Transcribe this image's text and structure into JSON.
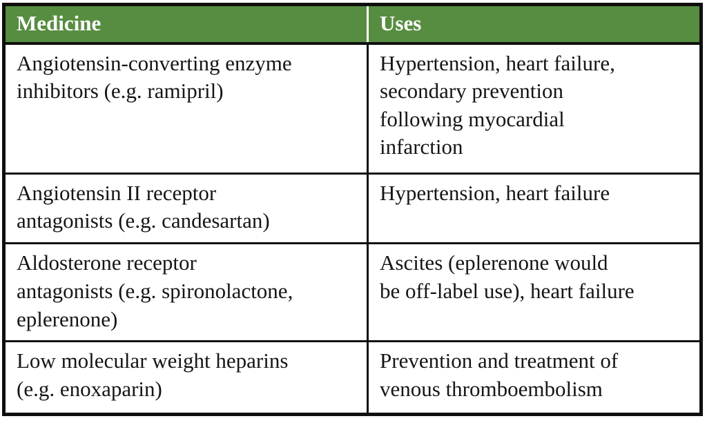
{
  "colors": {
    "header_bg": "#578d41",
    "header_text": "#ffffff",
    "border": "#0f0f0f",
    "body_text": "#151515",
    "body_bg": "#ffffff"
  },
  "table": {
    "columns": {
      "medicine": "Medicine",
      "uses": "Uses"
    },
    "rows": [
      {
        "medicine": "Angiotensin-converting enzyme\ninhibitors (e.g. ramipril)",
        "uses": "Hypertension, heart failure,\nsecondary prevention\nfollowing myocardial\ninfarction"
      },
      {
        "medicine": "Angiotensin II receptor\nantagonists (e.g. candesartan)",
        "uses": "Hypertension, heart failure"
      },
      {
        "medicine": "Aldosterone receptor\nantagonists (e.g. spironolactone,\neplerenone)",
        "uses": "Ascites (eplerenone would\nbe off-label use), heart failure"
      },
      {
        "medicine": "Low molecular weight heparins\n(e.g. enoxaparin)",
        "uses": "Prevention and treatment of\nvenous thromboembolism"
      }
    ]
  }
}
